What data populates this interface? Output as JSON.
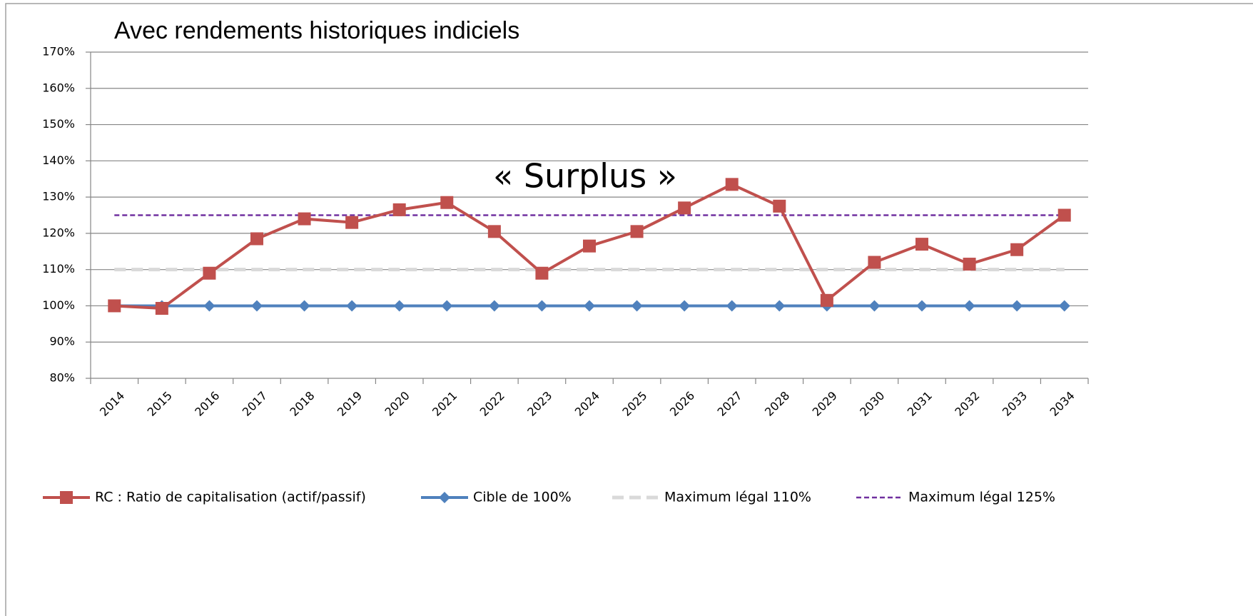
{
  "chart_data": {
    "type": "line",
    "title": "Avec rendements historiques indiciels",
    "annotation": "« Surplus »",
    "categories": [
      "2014",
      "2015",
      "2016",
      "2017",
      "2018",
      "2019",
      "2020",
      "2021",
      "2022",
      "2023",
      "2024",
      "2025",
      "2026",
      "2027",
      "2028",
      "2029",
      "2030",
      "2031",
      "2032",
      "2033",
      "2034"
    ],
    "series": [
      {
        "name": "RC : Ratio de capitalisation (actif/passif)",
        "color": "#c0504d",
        "marker": "square",
        "dash": "solid",
        "values": [
          100,
          99.3,
          109,
          118.5,
          124,
          123,
          126.5,
          128.5,
          120.5,
          109,
          116.5,
          120.5,
          127,
          133.5,
          127.5,
          101.5,
          112,
          117,
          111.5,
          115.5,
          125
        ]
      },
      {
        "name": "Cible de 100%",
        "color": "#4f81bd",
        "marker": "diamond",
        "dash": "solid",
        "values": [
          100,
          100,
          100,
          100,
          100,
          100,
          100,
          100,
          100,
          100,
          100,
          100,
          100,
          100,
          100,
          100,
          100,
          100,
          100,
          100,
          100
        ]
      },
      {
        "name": "Maximum légal 110%",
        "color": "#d9d9d9",
        "marker": "none",
        "dash": "long",
        "values": [
          110,
          110,
          110,
          110,
          110,
          110,
          110,
          110,
          110,
          110,
          110,
          110,
          110,
          110,
          110,
          110,
          110,
          110,
          110,
          110,
          110
        ]
      },
      {
        "name": "Maximum légal 125%",
        "color": "#7030a0",
        "marker": "none",
        "dash": "short",
        "values": [
          125,
          125,
          125,
          125,
          125,
          125,
          125,
          125,
          125,
          125,
          125,
          125,
          125,
          125,
          125,
          125,
          125,
          125,
          125,
          125,
          125
        ]
      }
    ],
    "ylim": [
      80,
      170
    ],
    "yticks": [
      {
        "value": 80,
        "label": "80%"
      },
      {
        "value": 90,
        "label": "90%"
      },
      {
        "value": 100,
        "label": "100%"
      },
      {
        "value": 110,
        "label": "110%"
      },
      {
        "value": 120,
        "label": "120%"
      },
      {
        "value": 130,
        "label": "130%"
      },
      {
        "value": 140,
        "label": "140%"
      },
      {
        "value": 150,
        "label": "150%"
      },
      {
        "value": 160,
        "label": "160%"
      },
      {
        "value": 170,
        "label": "170%"
      }
    ],
    "grid": true,
    "legend": "bottom"
  }
}
